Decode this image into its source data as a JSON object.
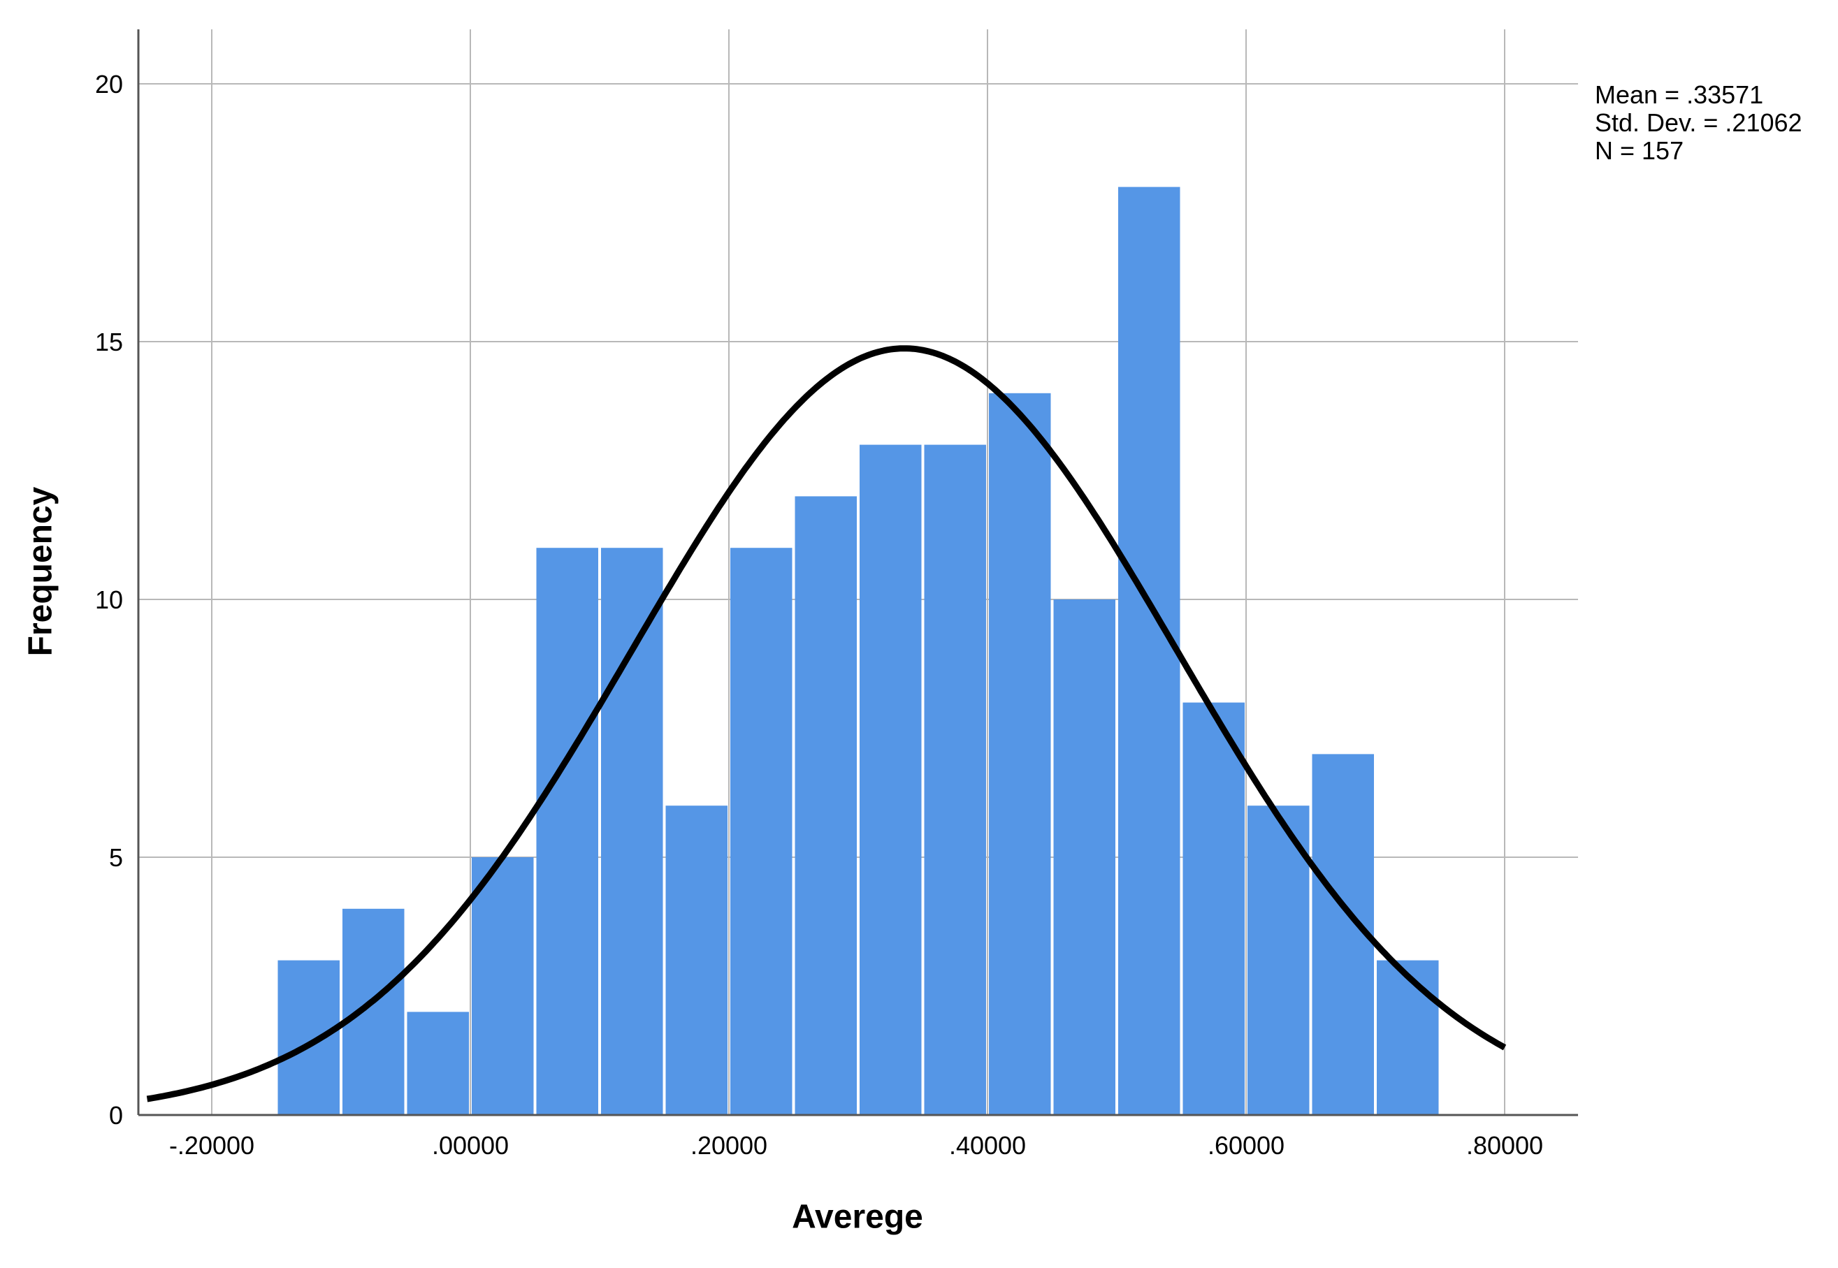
{
  "chart_data": {
    "type": "bar",
    "subtype": "histogram",
    "title": "",
    "xlabel": "Averege",
    "ylabel": "Frequency",
    "xlim": [
      -0.25,
      0.8
    ],
    "ylim": [
      0,
      20
    ],
    "x_ticks": [
      -0.2,
      0.0,
      0.2,
      0.4,
      0.6,
      0.8
    ],
    "x_tick_labels": [
      "-.20000",
      ".00000",
      ".20000",
      ".40000",
      ".60000",
      ".80000"
    ],
    "y_ticks": [
      0,
      5,
      10,
      15,
      20
    ],
    "y_tick_labels": [
      "0",
      "5",
      "10",
      "15",
      "20"
    ],
    "grid": true,
    "bin_width": 0.05,
    "bins": [
      {
        "x0": -0.15,
        "x1": -0.1,
        "count": 3
      },
      {
        "x0": -0.1,
        "x1": -0.05,
        "count": 4
      },
      {
        "x0": -0.05,
        "x1": 0.0,
        "count": 2
      },
      {
        "x0": 0.0,
        "x1": 0.05,
        "count": 5
      },
      {
        "x0": 0.05,
        "x1": 0.1,
        "count": 11
      },
      {
        "x0": 0.1,
        "x1": 0.15,
        "count": 11
      },
      {
        "x0": 0.15,
        "x1": 0.2,
        "count": 6
      },
      {
        "x0": 0.2,
        "x1": 0.25,
        "count": 11
      },
      {
        "x0": 0.25,
        "x1": 0.3,
        "count": 12
      },
      {
        "x0": 0.3,
        "x1": 0.35,
        "count": 13
      },
      {
        "x0": 0.35,
        "x1": 0.4,
        "count": 13
      },
      {
        "x0": 0.4,
        "x1": 0.45,
        "count": 14
      },
      {
        "x0": 0.45,
        "x1": 0.5,
        "count": 10
      },
      {
        "x0": 0.5,
        "x1": 0.55,
        "count": 18
      },
      {
        "x0": 0.55,
        "x1": 0.6,
        "count": 8
      },
      {
        "x0": 0.6,
        "x1": 0.65,
        "count": 6
      },
      {
        "x0": 0.65,
        "x1": 0.7,
        "count": 7
      },
      {
        "x0": 0.7,
        "x1": 0.75,
        "count": 3
      }
    ],
    "normal_curve": {
      "mean": 0.33571,
      "std_dev": 0.21062,
      "n": 157
    },
    "stats_text": [
      "Mean = .33571",
      "Std. Dev. = .21062",
      "N = 157"
    ],
    "colors": {
      "bar": "#5596E6",
      "curve": "#000000",
      "grid": "#b8b8b8",
      "axis": "#555555"
    }
  }
}
